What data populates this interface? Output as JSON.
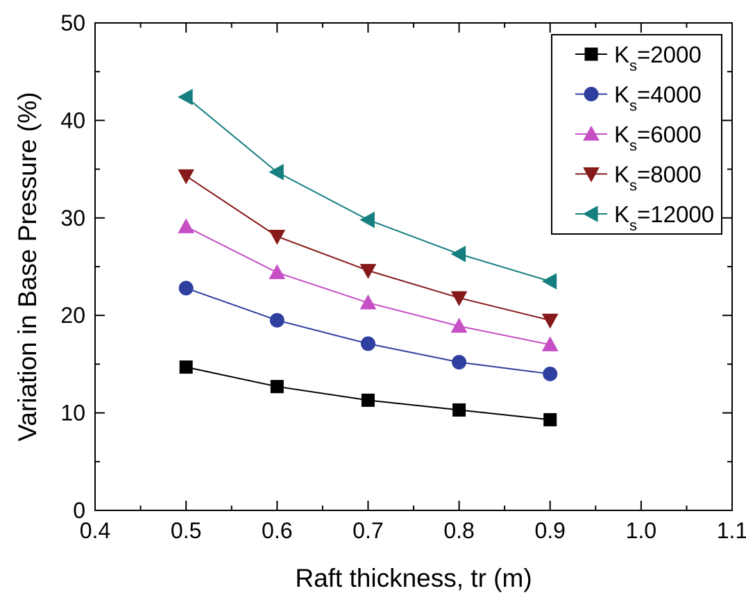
{
  "chart_data": {
    "type": "line",
    "x_label": "Raft thickness, tr (m)",
    "y_label": "Variation in Base Pressure (%)",
    "x": [
      0.5,
      0.6,
      0.7,
      0.8,
      0.9
    ],
    "xlim": [
      0.4,
      1.1
    ],
    "xticks": [
      0.4,
      0.5,
      0.6,
      0.7,
      0.8,
      0.9,
      {
        "value": 1,
        "label": "1.0"
      },
      1.1
    ],
    "ylim": [
      0,
      50
    ],
    "yticks": [
      0,
      10,
      20,
      30,
      40,
      50
    ],
    "legend": "upper right",
    "series": [
      {
        "name": "Ks=2000",
        "color": "#000000",
        "marker": "square",
        "values": [
          14.7,
          12.7,
          11.3,
          10.3,
          9.3
        ]
      },
      {
        "name": "Ks=4000",
        "color": "#2f3f9f",
        "marker": "circle",
        "values": [
          22.8,
          19.5,
          17.1,
          15.2,
          14.0
        ]
      },
      {
        "name": "Ks=6000",
        "color": "#c64fc6",
        "marker": "triangle-up",
        "values": [
          29.1,
          24.4,
          21.3,
          18.9,
          17.0
        ]
      },
      {
        "name": "Ks=8000",
        "color": "#861a1a",
        "marker": "triangle-down",
        "values": [
          34.3,
          28.1,
          24.6,
          21.8,
          19.5
        ]
      },
      {
        "name": "Ks=12000",
        "color": "#157f80",
        "marker": "triangle-left",
        "values": [
          42.4,
          34.7,
          29.8,
          26.3,
          23.5
        ]
      }
    ]
  }
}
